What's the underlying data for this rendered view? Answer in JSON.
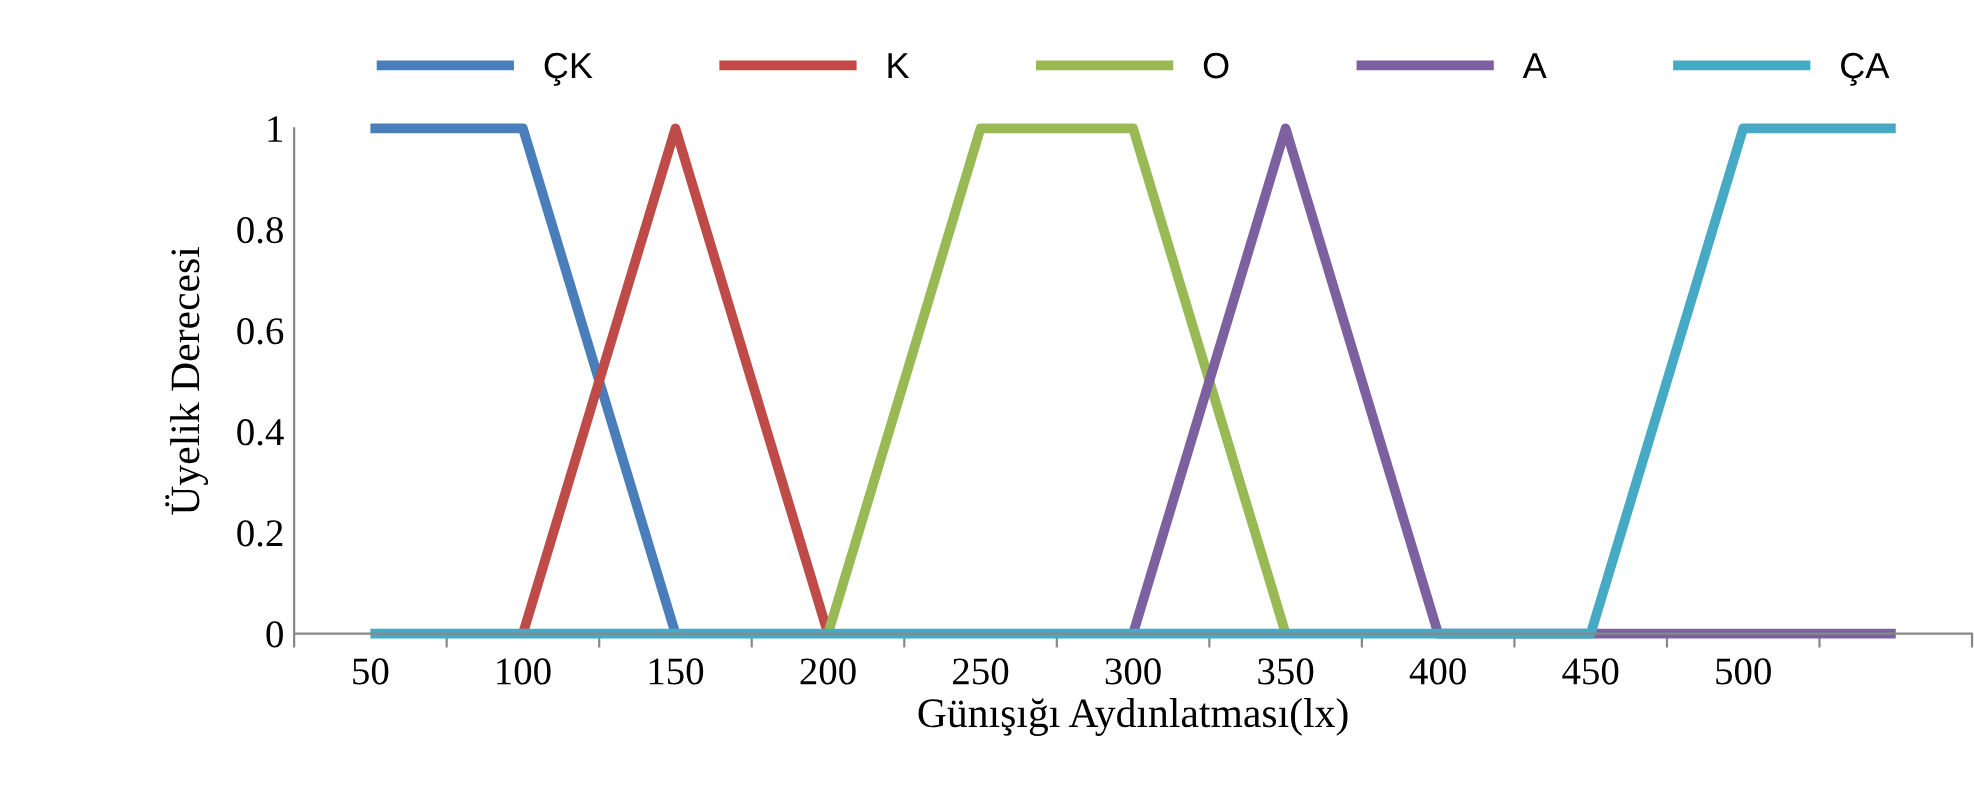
{
  "chart_data": {
    "type": "line",
    "xlabel": "Günışığı Aydınlatması(lx)",
    "ylabel": "Üyelik Derecesi",
    "x": [
      50,
      100,
      150,
      200,
      250,
      300,
      350,
      400,
      450,
      500,
      550
    ],
    "series": [
      {
        "name": "ÇK",
        "color": "#4a7ebb",
        "values": [
          1,
          1,
          0,
          null,
          null,
          null,
          null,
          null,
          null,
          null,
          null
        ]
      },
      {
        "name": "K",
        "color": "#be4b48",
        "values": [
          null,
          0,
          1,
          0,
          null,
          null,
          null,
          null,
          null,
          null,
          null
        ]
      },
      {
        "name": "O",
        "color": "#98b954",
        "values": [
          null,
          null,
          null,
          0,
          1,
          1,
          0,
          null,
          null,
          null,
          null
        ]
      },
      {
        "name": "A",
        "color": "#7d60a0",
        "values": [
          null,
          null,
          null,
          null,
          null,
          0,
          1,
          0,
          0,
          0,
          0
        ]
      },
      {
        "name": "ÇA",
        "color": "#46aac5",
        "values": [
          0,
          0,
          0,
          0,
          0,
          0,
          0,
          0,
          0,
          1,
          1
        ]
      }
    ],
    "xlim": [
      25,
      575
    ],
    "xticks": [
      {
        "value": 25,
        "label": null
      },
      50,
      {
        "value": 75,
        "label": null
      },
      100,
      {
        "value": 125,
        "label": null
      },
      150,
      {
        "value": 175,
        "label": null
      },
      200,
      {
        "value": 225,
        "label": null
      },
      250,
      {
        "value": 275,
        "label": null
      },
      300,
      {
        "value": 325,
        "label": null
      },
      350,
      {
        "value": 375,
        "label": null
      },
      400,
      {
        "value": 425,
        "label": null
      },
      450,
      {
        "value": 475,
        "label": null
      },
      500,
      {
        "value": 525,
        "label": null
      },
      {
        "value": 575,
        "label": null
      }
    ],
    "ylim": [
      0,
      1
    ],
    "yticks": [
      0,
      0.2,
      0.4,
      0.6,
      0.8,
      1
    ],
    "grid": false,
    "legend": "top",
    "marker": "none",
    "line_style": "solid"
  }
}
